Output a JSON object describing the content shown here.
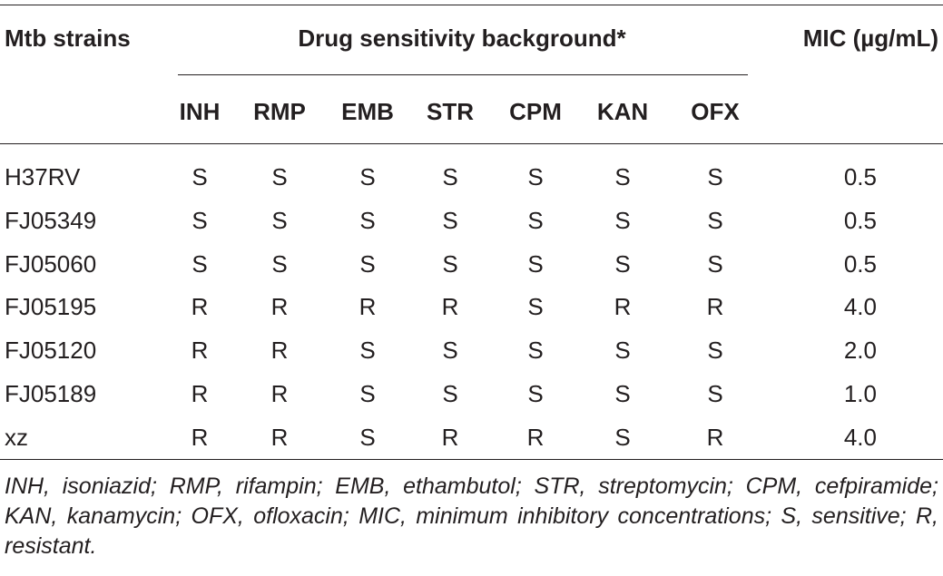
{
  "table": {
    "header": {
      "strains_label": "Mtb strains",
      "group_label": "Drug sensitivity background*",
      "mic_label": "MIC (µg/mL)",
      "drugs": [
        "INH",
        "RMP",
        "EMB",
        "STR",
        "CPM",
        "KAN",
        "OFX"
      ]
    },
    "rows": [
      {
        "strain": "H37RV",
        "values": [
          "S",
          "S",
          "S",
          "S",
          "S",
          "S",
          "S"
        ],
        "mic": "0.5"
      },
      {
        "strain": "FJ05349",
        "values": [
          "S",
          "S",
          "S",
          "S",
          "S",
          "S",
          "S"
        ],
        "mic": "0.5"
      },
      {
        "strain": "FJ05060",
        "values": [
          "S",
          "S",
          "S",
          "S",
          "S",
          "S",
          "S"
        ],
        "mic": "0.5"
      },
      {
        "strain": "FJ05195",
        "values": [
          "R",
          "R",
          "R",
          "R",
          "S",
          "R",
          "R"
        ],
        "mic": "4.0"
      },
      {
        "strain": "FJ05120",
        "values": [
          "R",
          "R",
          "S",
          "S",
          "S",
          "S",
          "S"
        ],
        "mic": "2.0"
      },
      {
        "strain": "FJ05189",
        "values": [
          "R",
          "R",
          "S",
          "S",
          "S",
          "S",
          "S"
        ],
        "mic": "1.0"
      },
      {
        "strain": "xz",
        "values": [
          "R",
          "R",
          "S",
          "R",
          "R",
          "S",
          "R"
        ],
        "mic": "4.0"
      }
    ],
    "footnote": "INH, isoniazid; RMP, rifampin; EMB, ethambutol; STR, streptomycin; CPM, cefpiramide; KAN, kanamycin; OFX, ofloxacin; MIC, minimum inhibitory concentrations; S, sensitive; R, resistant."
  }
}
